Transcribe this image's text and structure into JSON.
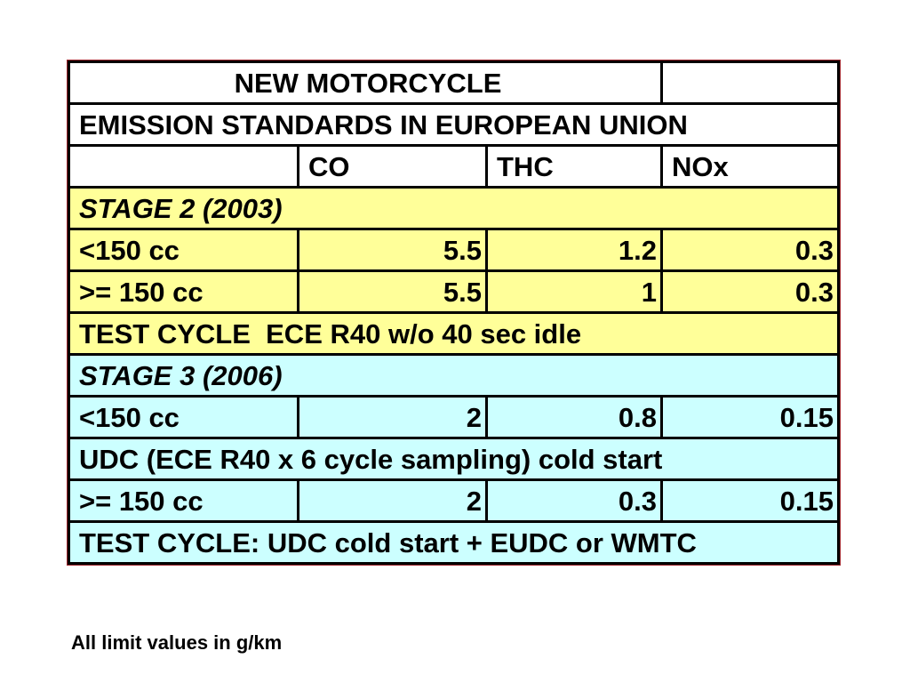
{
  "table": {
    "title": "NEW MOTORCYCLE",
    "subtitle": "EMISSION STANDARDS IN EUROPEAN UNION",
    "columns": [
      "",
      "CO",
      "THC",
      "NOx"
    ],
    "stage2": {
      "heading": "STAGE 2 (2003)",
      "rows": [
        {
          "label": "<150 cc",
          "co": "5.5",
          "thc": "1.2",
          "nox": "0.3"
        },
        {
          "label": ">= 150 cc",
          "co": "5.5",
          "thc": "1",
          "nox": "0.3"
        }
      ],
      "test_cycle": "TEST CYCLE  ECE R40 w/o 40 sec idle"
    },
    "stage3": {
      "heading": "STAGE 3 (2006)",
      "row_small": {
        "label": "<150 cc",
        "co": "2",
        "thc": "0.8",
        "nox": "0.15"
      },
      "small_note": "UDC (ECE R40 x 6 cycle sampling) cold start",
      "row_large": {
        "label": ">= 150 cc",
        "co": "2",
        "thc": "0.3",
        "nox": "0.15"
      },
      "test_cycle": "TEST CYCLE: UDC cold start + EUDC or WMTC"
    },
    "colors": {
      "stage2_fill": "#ffff99",
      "stage3_fill": "#ccffff",
      "frame": "#a0282f"
    }
  },
  "footnote": "All limit values in g/km"
}
